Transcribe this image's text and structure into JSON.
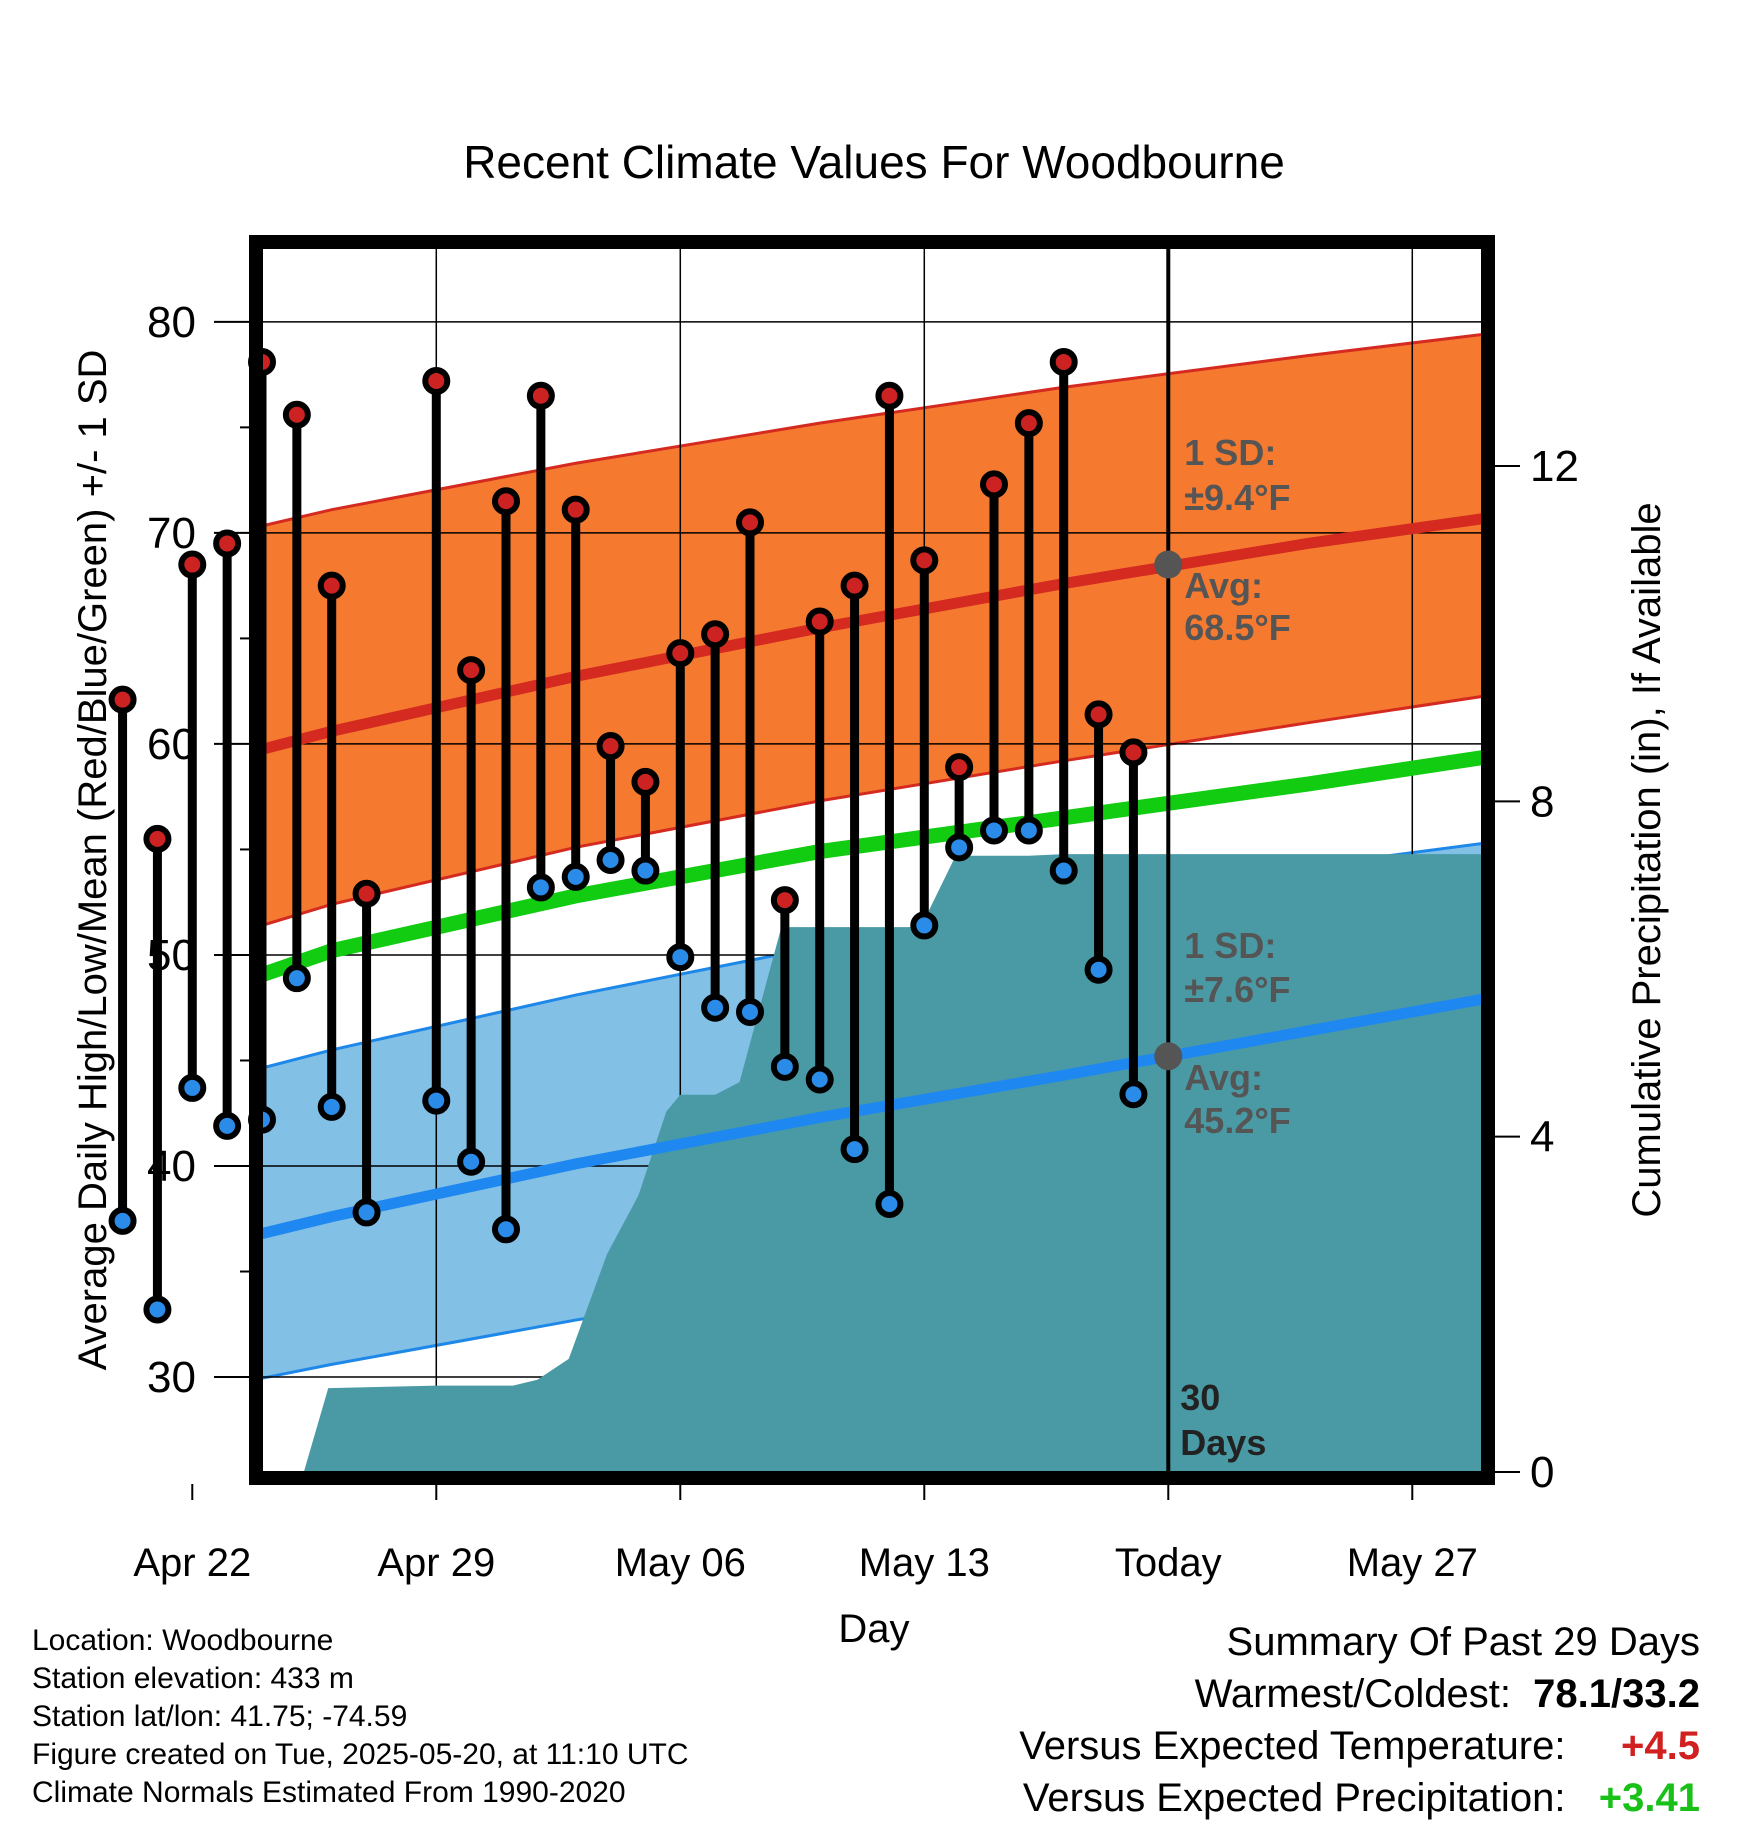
{
  "title": "Recent Climate Values For Woodbourne",
  "chart_data": {
    "type": "line",
    "title": "Recent Climate Values For Woodbourne",
    "xlabel": "Day",
    "ylabel": "Average Daily High/Low/Mean (Red/Blue/Green) +/- 1 SD",
    "y2label": "Cumulative Precipitation (in), If Available",
    "ylim": [
      25.5,
      83.5
    ],
    "y2lim": [
      0,
      14.6
    ],
    "xlim": [
      -26,
      9
    ],
    "x_ticks": [
      {
        "x": -28,
        "label": "Apr 22"
      },
      {
        "x": -21,
        "label": "Apr 29"
      },
      {
        "x": -14,
        "label": "May 06"
      },
      {
        "x": -7,
        "label": "May 13"
      },
      {
        "x": 0,
        "label": "Today"
      },
      {
        "x": 7,
        "label": "May 27"
      }
    ],
    "y_ticks": [
      30,
      40,
      50,
      60,
      70,
      80
    ],
    "y2_ticks": [
      0,
      4,
      8,
      12
    ],
    "today_x": 0,
    "today_label_line1": "30",
    "today_label_line2": "Days",
    "normals": {
      "x": [
        -31,
        -24,
        -17,
        -10,
        -3,
        4,
        10
      ],
      "high_avg": [
        57.6,
        60.6,
        63.2,
        65.5,
        67.6,
        69.5,
        70.9
      ],
      "high_upper": [
        68.4,
        71.1,
        73.3,
        75.2,
        76.9,
        78.4,
        79.6
      ],
      "high_lower": [
        48.9,
        52.4,
        55.1,
        57.3,
        59.2,
        61.0,
        62.5
      ],
      "mean": [
        46.2,
        50.2,
        52.8,
        54.9,
        56.5,
        58.1,
        59.6
      ],
      "low_avg": [
        34.8,
        37.6,
        40.1,
        42.3,
        44.3,
        46.4,
        48.2
      ],
      "low_upper": [
        42.5,
        45.5,
        48.1,
        50.4,
        52.4,
        54.2,
        55.5
      ],
      "low_lower": [
        28.3,
        30.6,
        32.7,
        34.6,
        36.2,
        37.8,
        38.9
      ]
    },
    "series": [
      {
        "name": "Daily High",
        "color": "#cc2222",
        "x": [
          -30,
          -29,
          -28,
          -27,
          -26,
          -25,
          -24,
          -23,
          -21,
          -20,
          -19,
          -18,
          -17,
          -16,
          -15,
          -14,
          -13,
          -12,
          -11,
          -10,
          -9,
          -8,
          -7,
          -6,
          -5,
          -4,
          -3,
          -2,
          -1
        ],
        "values": [
          62.1,
          55.5,
          68.5,
          69.5,
          78.1,
          75.6,
          67.5,
          52.9,
          77.2,
          63.5,
          71.5,
          76.5,
          71.1,
          59.9,
          58.2,
          64.3,
          65.2,
          70.5,
          52.6,
          65.8,
          67.5,
          76.5,
          68.7,
          58.9,
          72.3,
          75.2,
          78.1,
          61.4,
          59.6
        ]
      },
      {
        "name": "Daily Low",
        "color": "#2a8ce8",
        "x": [
          -30,
          -29,
          -28,
          -27,
          -26,
          -25,
          -24,
          -23,
          -21,
          -20,
          -19,
          -18,
          -17,
          -16,
          -15,
          -14,
          -13,
          -12,
          -11,
          -10,
          -9,
          -8,
          -7,
          -6,
          -5,
          -4,
          -3,
          -2,
          -1
        ],
        "values": [
          37.4,
          33.2,
          43.7,
          41.9,
          42.2,
          48.9,
          42.8,
          37.8,
          43.1,
          40.2,
          37.0,
          53.2,
          53.7,
          54.5,
          54.0,
          49.9,
          47.5,
          47.3,
          44.7,
          44.1,
          40.8,
          38.2,
          51.4,
          55.1,
          55.9,
          55.9,
          54.0,
          49.3,
          43.4
        ]
      },
      {
        "name": "Cumulative Precipitation",
        "color": "#4a9aa5",
        "x": [
          -24.8,
          -24.1,
          -21,
          -18.8,
          -18.1,
          -17.2,
          -16.1,
          -15.2,
          -14.4,
          -14,
          -13,
          -12.3,
          -11.1,
          -10,
          -8.9,
          -7.1,
          -6.1,
          -5,
          -4,
          -3,
          -2,
          -1,
          0,
          9.9
        ],
        "values": [
          0,
          1.0,
          1.03,
          1.03,
          1.1,
          1.35,
          2.6,
          3.3,
          4.3,
          4.5,
          4.5,
          4.65,
          6.5,
          6.5,
          6.5,
          6.5,
          7.35,
          7.35,
          7.35,
          7.37,
          7.37,
          7.37,
          7.37,
          7.37
        ]
      }
    ],
    "annotations": {
      "high_sd_line1": "1 SD:",
      "high_sd_line2": "±9.4°F",
      "high_avg_line1": "Avg:",
      "high_avg_line2": "68.5°F",
      "low_sd_line1": "1 SD:",
      "low_sd_line2": "±7.6°F",
      "low_avg_line1": "Avg:",
      "low_avg_line2": "45.2°F",
      "today_high_avg": 68.5,
      "today_low_avg": 45.2
    }
  },
  "footer": {
    "location": "Location: Woodbourne",
    "elevation": "Station elevation: 433 m",
    "latlon": "Station lat/lon: 41.75; -74.59",
    "created": "Figure created on Tue, 2025-05-20, at 11:10 UTC",
    "normals": "Climate Normals Estimated From 1990-2020"
  },
  "summary": {
    "heading": "Summary Of Past 29 Days",
    "warm_cold_label": "Warmest/Coldest:",
    "warm_cold_value": "78.1/33.2",
    "temp_label": "Versus Expected Temperature:",
    "temp_value": "+4.5",
    "precip_label": "Versus Expected Precipitation:",
    "precip_value": "+3.41",
    "temp_color": "#d02020",
    "precip_color": "#18c018"
  }
}
